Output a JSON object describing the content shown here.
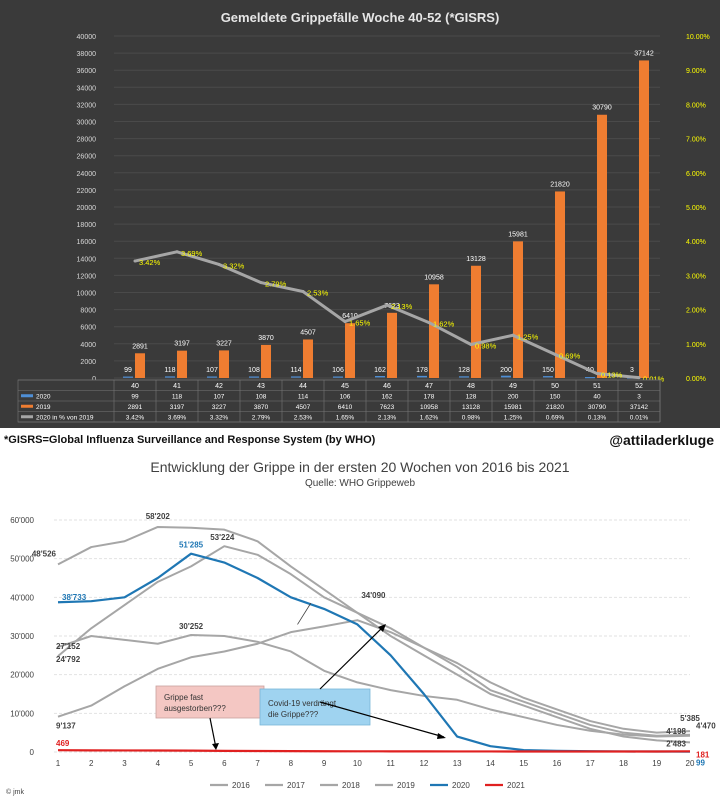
{
  "footnote": "*GISRS=Global Influenza Surveillance and Response System (by WHO)",
  "credit": "@attiladerkluge",
  "chart_data": [
    {
      "type": "bar",
      "title": "Gemeldete Grippefälle Woche 40-52 (*GISRS)",
      "categories": [
        "40",
        "41",
        "42",
        "43",
        "44",
        "45",
        "46",
        "47",
        "48",
        "49",
        "50",
        "51",
        "52"
      ],
      "ylim": [
        0,
        40000
      ],
      "y_ticks": [
        "0",
        "2000",
        "4000",
        "6000",
        "8000",
        "10000",
        "12000",
        "14000",
        "16000",
        "18000",
        "20000",
        "22000",
        "24000",
        "26000",
        "28000",
        "30000",
        "32000",
        "34000",
        "36000",
        "38000",
        "40000"
      ],
      "y2lim": [
        0,
        10
      ],
      "y2_ticks": [
        "0.00%",
        "1.00%",
        "2.00%",
        "3.00%",
        "4.00%",
        "5.00%",
        "6.00%",
        "7.00%",
        "8.00%",
        "9.00%",
        "10.00%"
      ],
      "series": [
        {
          "name": "2020",
          "values": [
            99,
            118,
            107,
            108,
            114,
            106,
            162,
            178,
            128,
            200,
            150,
            40,
            3
          ],
          "color": "#4f8fd6"
        },
        {
          "name": "2019",
          "values": [
            2891,
            3197,
            3227,
            3870,
            4507,
            6410,
            7623,
            10958,
            13128,
            15981,
            21820,
            30790,
            37142
          ],
          "color": "#ef7d31"
        },
        {
          "name": "2020 in % von 2019",
          "axis": "secondary",
          "values": [
            3.42,
            3.69,
            3.32,
            2.79,
            2.53,
            1.65,
            2.13,
            1.62,
            0.98,
            1.25,
            0.69,
            0.13,
            0.01
          ],
          "labels": [
            "3.42%",
            "3.69%",
            "3.32%",
            "2.79%",
            "2.53%",
            "1.65%",
            "2.13%",
            "1.62%",
            "0.98%",
            "1.25%",
            "0.69%",
            "0.13%",
            "0.01%"
          ],
          "color": "#a6a6a6"
        }
      ],
      "table": {
        "header": [
          "40",
          "41",
          "42",
          "43",
          "44",
          "45",
          "46",
          "47",
          "48",
          "49",
          "50",
          "51",
          "52"
        ],
        "rows": [
          {
            "label": "2020",
            "cells": [
              "99",
              "118",
              "107",
              "108",
              "114",
              "106",
              "162",
              "178",
              "128",
              "200",
              "150",
              "40",
              "3"
            ]
          },
          {
            "label": "2019",
            "cells": [
              "2891",
              "3197",
              "3227",
              "3870",
              "4507",
              "6410",
              "7623",
              "10958",
              "13128",
              "15981",
              "21820",
              "30790",
              "37142"
            ]
          },
          {
            "label": "2020 in % von 2019",
            "cells": [
              "3.42%",
              "3.69%",
              "3.32%",
              "2.79%",
              "2.53%",
              "1.65%",
              "2.13%",
              "1.62%",
              "0.98%",
              "1.25%",
              "0.69%",
              "0.13%",
              "0.01%"
            ]
          }
        ]
      },
      "bar_labels_2019": [
        "2891",
        "3197",
        "3227",
        "3870",
        "4507",
        "6410",
        "7623",
        "10958",
        "13128",
        "15981",
        "21820",
        "30790",
        "37142"
      ],
      "bar_labels_2020": [
        "99",
        "118",
        "107",
        "108",
        "114",
        "106",
        "162",
        "178",
        "128",
        "200",
        "150",
        "40",
        "3"
      ],
      "colors": {
        "background": "#3a3a3a",
        "line_labels": "#ffff00"
      }
    },
    {
      "type": "line",
      "title": "Entwicklung der Grippe in der ersten 20 Wochen von 2016 bis 2021",
      "subtitle": "Quelle: WHO Grippeweb",
      "x": [
        1,
        2,
        3,
        4,
        5,
        6,
        7,
        8,
        9,
        10,
        11,
        12,
        13,
        14,
        15,
        16,
        17,
        18,
        19,
        20
      ],
      "xlim": [
        1,
        20
      ],
      "ylim": [
        0,
        60000
      ],
      "y_ticks": [
        "0",
        "10'000",
        "20'000",
        "30'000",
        "40'000",
        "50'000",
        "60'000"
      ],
      "series": [
        {
          "name": "2016",
          "color": "#a6a6a6",
          "values": [
            9137,
            12000,
            17000,
            21500,
            24500,
            26000,
            28000,
            31000,
            32500,
            34090,
            31000,
            27000,
            23000,
            18000,
            14000,
            11000,
            8000,
            6000,
            5000,
            5385
          ]
        },
        {
          "name": "2017",
          "color": "#a6a6a6",
          "values": [
            48526,
            53000,
            54500,
            58202,
            58000,
            57500,
            54500,
            48000,
            42000,
            36000,
            32000,
            27000,
            22000,
            16000,
            13000,
            10000,
            7000,
            5000,
            4200,
            4470
          ]
        },
        {
          "name": "2018",
          "color": "#a6a6a6",
          "values": [
            27152,
            30000,
            29000,
            28000,
            30252,
            30000,
            28500,
            26000,
            21000,
            18000,
            16000,
            14500,
            13500,
            11000,
            9000,
            7000,
            5500,
            4500,
            4000,
            4198
          ]
        },
        {
          "name": "2019",
          "color": "#a6a6a6",
          "values": [
            24792,
            32000,
            38000,
            44000,
            48000,
            53224,
            51000,
            46000,
            40000,
            36000,
            30000,
            25000,
            20000,
            15000,
            12000,
            9000,
            6000,
            4000,
            3000,
            2483
          ]
        },
        {
          "name": "2020",
          "color": "#1f77b4",
          "values": [
            38733,
            39000,
            40000,
            45000,
            51285,
            49000,
            45000,
            40000,
            37000,
            33000,
            25000,
            15000,
            4000,
            1500,
            500,
            300,
            200,
            150,
            120,
            99
          ]
        },
        {
          "name": "2021",
          "color": "#e02020",
          "values": [
            469,
            420,
            400,
            380,
            350,
            300,
            250,
            220,
            200,
            180,
            170,
            160,
            150,
            140,
            130,
            130,
            130,
            130,
            130,
            181
          ]
        }
      ],
      "value_labels": [
        {
          "text": "48'526",
          "series": "2017",
          "index": 0
        },
        {
          "text": "58'202",
          "series": "2017",
          "index": 3
        },
        {
          "text": "51'285",
          "series": "2020",
          "index": 4
        },
        {
          "text": "53'224",
          "series": "2019",
          "index": 5
        },
        {
          "text": "38'733",
          "series": "2020",
          "index": 0
        },
        {
          "text": "27'152",
          "series": "2018",
          "index": 0
        },
        {
          "text": "24'792",
          "series": "2019",
          "index": 0
        },
        {
          "text": "30'252",
          "series": "2018",
          "index": 4
        },
        {
          "text": "34'090",
          "series": "2016",
          "index": 9
        },
        {
          "text": "9'137",
          "series": "2016",
          "index": 0
        },
        {
          "text": "469",
          "series": "2021",
          "index": 0
        },
        {
          "text": "5'385",
          "series": "2016",
          "index": 19
        },
        {
          "text": "4'470",
          "series": "2017",
          "index": 19
        },
        {
          "text": "4'198",
          "series": "2018",
          "index": 19
        },
        {
          "text": "2'483",
          "series": "2019",
          "index": 19
        },
        {
          "text": "181",
          "series": "2021",
          "index": 19
        },
        {
          "text": "99",
          "series": "2020",
          "index": 19
        }
      ],
      "annotations": [
        {
          "text": [
            "Grippe fast",
            "ausgestorben???"
          ],
          "fill": "#f4c7c3"
        },
        {
          "text": [
            "Covid-19 verdrängt",
            "die Grippe???"
          ],
          "fill": "#9fd3f0"
        }
      ],
      "legend_position": "bottom",
      "signature": "© jmk"
    }
  ]
}
